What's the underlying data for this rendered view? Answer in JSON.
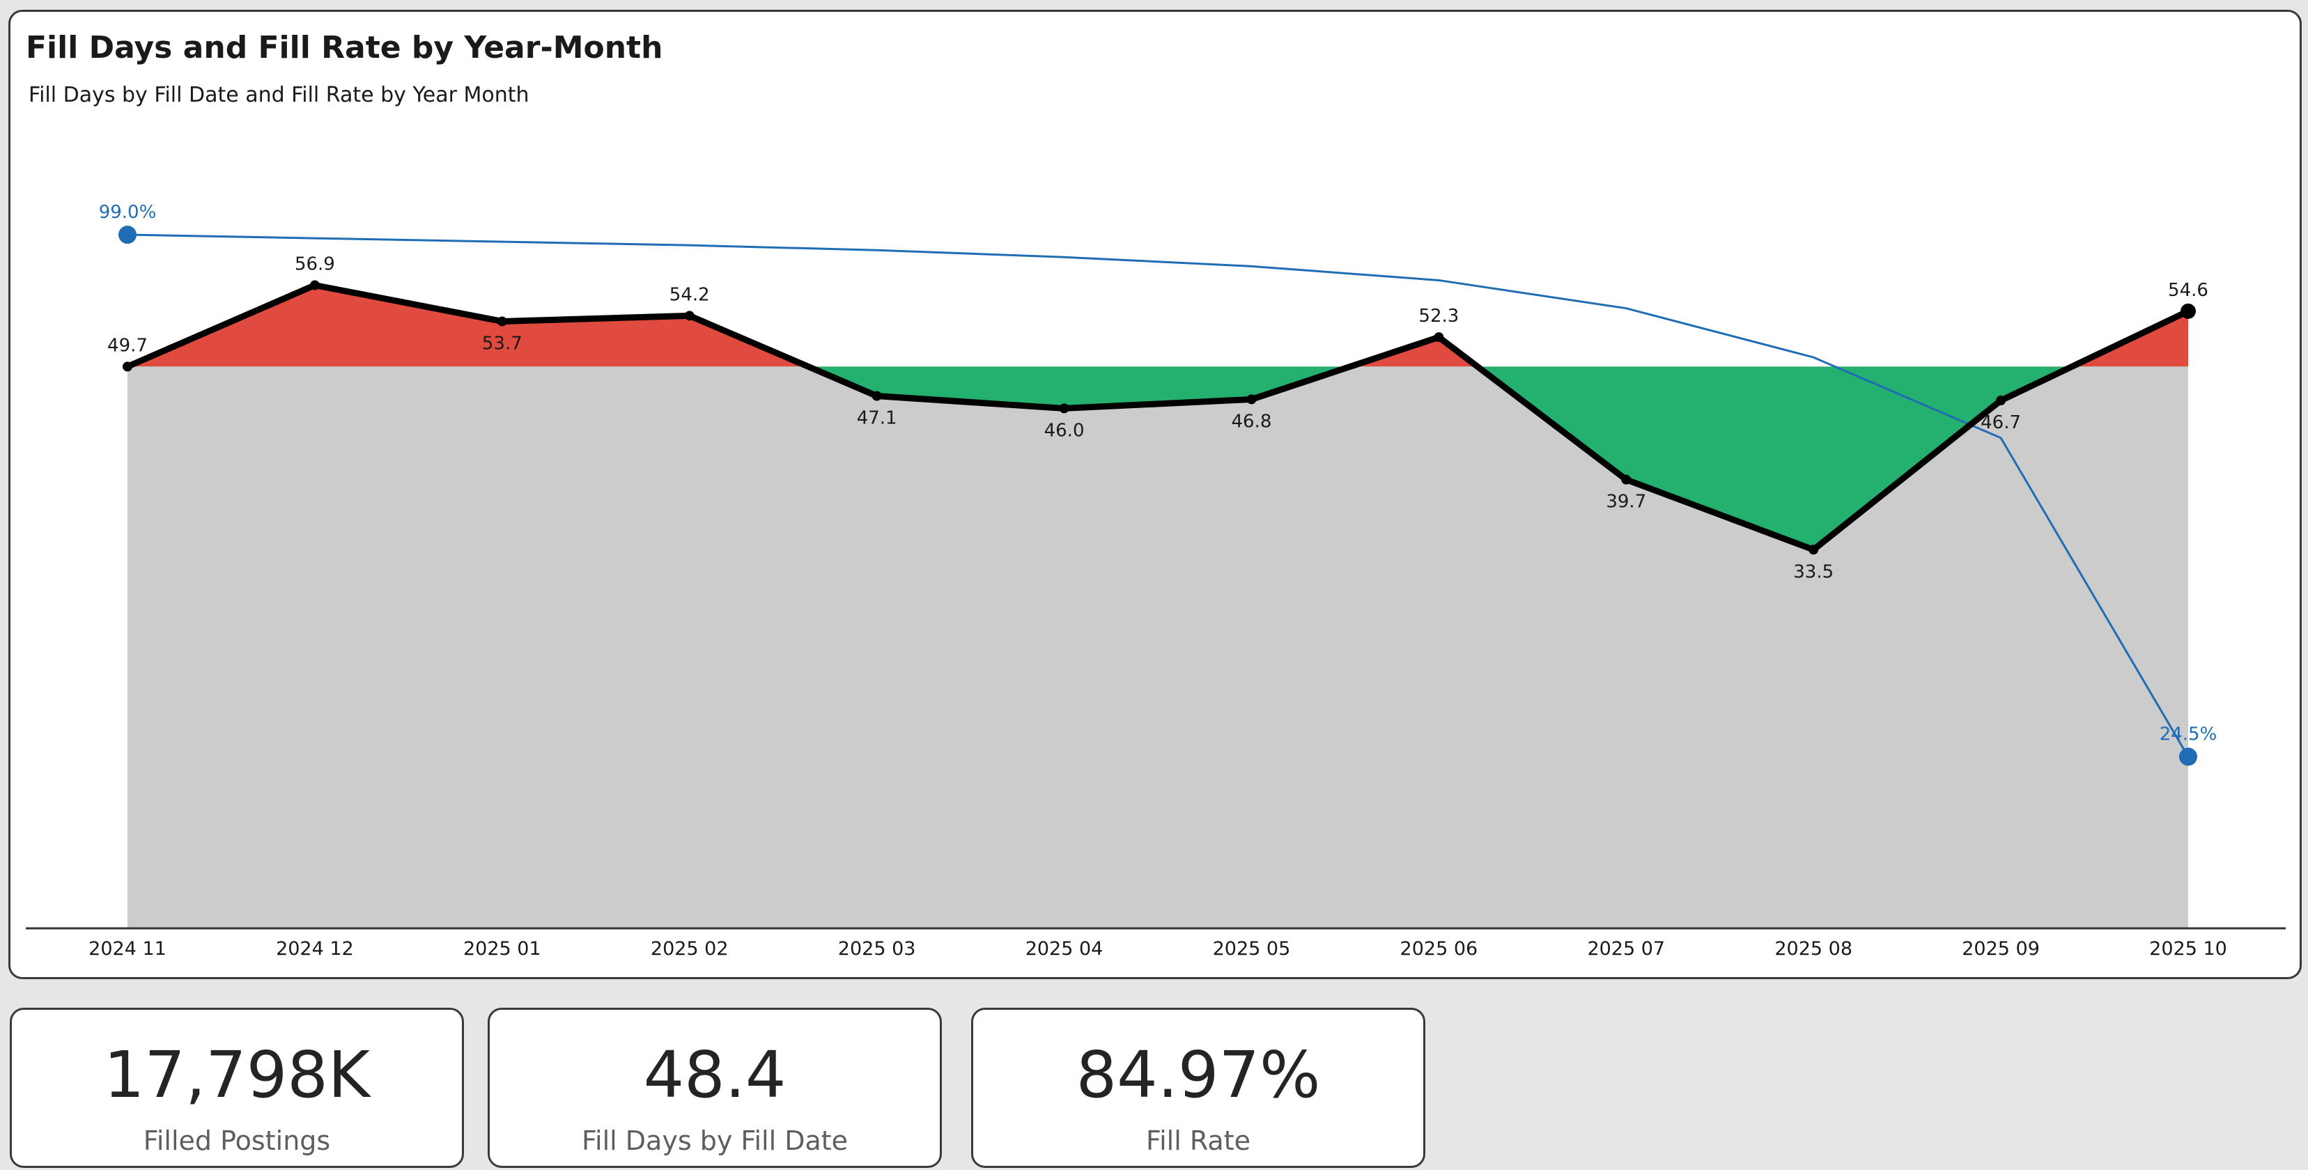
{
  "header": {
    "title": "Fill Days and Fill Rate by Year-Month",
    "subtitle": "Fill Days by Fill Date and Fill Rate by Year Month"
  },
  "chart_data": {
    "type": "line",
    "categories": [
      "2024 11",
      "2024 12",
      "2025 01",
      "2025 02",
      "2025 03",
      "2025 04",
      "2025 05",
      "2025 06",
      "2025 07",
      "2025 08",
      "2025 09",
      "2025 10"
    ],
    "series": [
      {
        "name": "Fill Days by Fill Date",
        "values": [
          49.7,
          56.9,
          53.7,
          54.2,
          47.1,
          46.0,
          46.8,
          52.3,
          39.7,
          33.5,
          46.7,
          54.6
        ],
        "labels": [
          "49.7",
          "56.9",
          "53.7",
          "54.2",
          "47.1",
          "46.0",
          "46.8",
          "52.3",
          "39.7",
          "33.5",
          "46.7",
          "54.6"
        ],
        "color": "#000000"
      },
      {
        "name": "Fill Rate",
        "values": [
          0.99,
          0.985,
          0.98,
          0.975,
          0.968,
          0.958,
          0.945,
          0.925,
          0.885,
          0.815,
          0.7,
          0.245
        ],
        "labels": [
          "99.0%",
          "",
          "",
          "",
          "",
          "",
          "",
          "",
          "",
          "",
          "",
          "24.5%"
        ],
        "color": "#1f6db5"
      }
    ],
    "reference_line": 49.7,
    "above_reference_color": "#e04a3f",
    "below_reference_color": "#24b06e",
    "base_fill_color": "#cccccc",
    "fill_days_ylim": [
      0,
      60
    ],
    "fill_rate_ylim": [
      0,
      1.0
    ]
  },
  "kpis": [
    {
      "value": "17,798K",
      "label": "Filled Postings"
    },
    {
      "value": "48.4",
      "label": "Fill Days by Fill Date"
    },
    {
      "value": "84.97%",
      "label": "Fill Rate"
    }
  ]
}
